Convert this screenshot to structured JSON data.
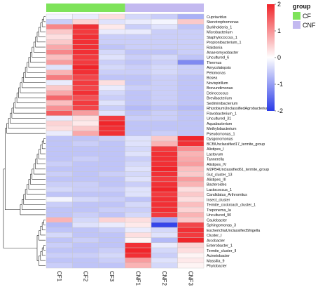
{
  "chart_data": {
    "type": "heatmap",
    "columns": [
      "CF1",
      "CF2",
      "CF3",
      "CNF1",
      "CNF2",
      "CNF3"
    ],
    "group_annotation": {
      "title": "group",
      "column_groups": [
        "CF",
        "CF",
        "CF",
        "CNF",
        "CNF",
        "CNF"
      ],
      "legend": [
        {
          "name": "CF",
          "color": "#7ee35a"
        },
        {
          "name": "CNF",
          "color": "#c3b9f0"
        }
      ]
    },
    "color_scale": {
      "min": -2,
      "max": 2,
      "ticks": [
        "2",
        "1",
        "0",
        "-1",
        "-2"
      ],
      "low_color": "#2a3be8",
      "mid_color": "#ffffff",
      "high_color": "#f0252a"
    },
    "rows": [
      {
        "label": "Cupriavidus",
        "values": [
          -0.1,
          -0.2,
          0.3,
          -0.4,
          -0.5,
          -0.8
        ]
      },
      {
        "label": "Stenotrophomonas",
        "values": [
          -0.5,
          0.4,
          -0.3,
          -0.2,
          -0.1,
          0.5
        ]
      },
      {
        "label": "Burkholderia_1",
        "values": [
          1.1,
          1.9,
          0.2,
          -0.5,
          -0.3,
          -0.6
        ]
      },
      {
        "label": "Microbacterium",
        "values": [
          0.5,
          1.8,
          -0.2,
          -0.2,
          -0.5,
          -0.5
        ]
      },
      {
        "label": "Staphylococcus_1",
        "values": [
          0.3,
          1.9,
          -0.5,
          -0.5,
          -0.5,
          -0.5
        ]
      },
      {
        "label": "Propionibacterium_1",
        "values": [
          0.5,
          1.9,
          -0.5,
          -0.5,
          -0.5,
          -0.5
        ]
      },
      {
        "label": "Ralstonia",
        "values": [
          0.8,
          1.9,
          -0.6,
          -0.5,
          -0.5,
          -0.5
        ]
      },
      {
        "label": "Anaeromyxobacter",
        "values": [
          1.1,
          1.9,
          -0.4,
          -0.6,
          -0.6,
          -0.5
        ]
      },
      {
        "label": "Uncultured_6",
        "values": [
          0.6,
          1.8,
          -0.3,
          -0.5,
          -0.4,
          -0.6
        ]
      },
      {
        "label": "Thermus",
        "values": [
          0.9,
          1.8,
          -0.5,
          -0.6,
          -0.5,
          -1.2
        ]
      },
      {
        "label": "Amycolatopsis",
        "values": [
          -0.3,
          2.0,
          -0.4,
          -0.5,
          -0.4,
          -0.5
        ]
      },
      {
        "label": "Pelomonas",
        "values": [
          0.7,
          1.9,
          -0.5,
          -0.5,
          -0.4,
          -0.5
        ]
      },
      {
        "label": "Bosea",
        "values": [
          1.2,
          1.7,
          -0.6,
          -0.6,
          -0.5,
          -0.6
        ]
      },
      {
        "label": "Novispirillum",
        "values": [
          -0.2,
          1.8,
          0.3,
          -0.6,
          -0.5,
          -0.6
        ]
      },
      {
        "label": "Brevundimonas",
        "values": [
          0.5,
          1.7,
          -0.2,
          -0.5,
          -0.5,
          -0.6
        ]
      },
      {
        "label": "Deinococcus",
        "values": [
          0.8,
          1.9,
          -0.4,
          -0.6,
          -0.5,
          -0.6
        ]
      },
      {
        "label": "Brevibacterium",
        "values": [
          1.4,
          1.6,
          -0.5,
          -0.6,
          -0.5,
          -0.6
        ]
      },
      {
        "label": "Sediminibacterium",
        "values": [
          0.6,
          1.8,
          -0.3,
          -0.6,
          -0.5,
          -0.6
        ]
      },
      {
        "label": "RhizobiumUnclassifiedAgrobacterium",
        "values": [
          1.0,
          1.7,
          -0.5,
          -0.7,
          -0.6,
          -0.7
        ]
      },
      {
        "label": "Flavobacterium_1",
        "values": [
          1.5,
          0.9,
          -0.3,
          -0.6,
          -0.5,
          -0.6
        ]
      },
      {
        "label": "Uncultured_31",
        "values": [
          -0.2,
          0.3,
          1.8,
          -0.5,
          -0.5,
          -0.6
        ]
      },
      {
        "label": "Aquabacterium",
        "values": [
          0.4,
          0.2,
          2.0,
          -0.6,
          -0.6,
          -0.6
        ]
      },
      {
        "label": "Methylobacterium",
        "values": [
          0.3,
          0.5,
          1.9,
          -0.6,
          -0.6,
          -0.6
        ]
      },
      {
        "label": "Pseudomonas_1",
        "values": [
          -0.2,
          0.8,
          1.9,
          -0.6,
          -0.5,
          -0.6
        ]
      },
      {
        "label": "Dysgonomonas",
        "values": [
          -0.6,
          -0.6,
          -0.5,
          -0.3,
          0.5,
          2.0
        ]
      },
      {
        "label": "BCf9Unclassified17_termite_group",
        "values": [
          -0.6,
          -0.5,
          -0.6,
          -0.3,
          0.7,
          1.9
        ]
      },
      {
        "label": "Alistipes_I",
        "values": [
          -0.6,
          -0.6,
          -0.6,
          -0.4,
          1.8,
          1.0
        ]
      },
      {
        "label": "Lactovum",
        "values": [
          -0.6,
          -0.6,
          -0.6,
          -0.3,
          1.9,
          0.7
        ]
      },
      {
        "label": "Tannerella",
        "values": [
          -0.6,
          -0.5,
          -0.6,
          -0.5,
          1.9,
          0.8
        ]
      },
      {
        "label": "Alistipes_IV",
        "values": [
          -0.5,
          -0.6,
          -0.6,
          -0.4,
          1.9,
          0.9
        ]
      },
      {
        "label": "M2PB4Unclassified61_termite_group",
        "values": [
          -0.6,
          -0.6,
          -0.6,
          -0.3,
          2.0,
          0.6
        ]
      },
      {
        "label": "Gut_cluster_13",
        "values": [
          -0.5,
          -0.6,
          -0.5,
          -0.4,
          1.9,
          0.5
        ]
      },
      {
        "label": "Alistipes_III",
        "values": [
          -0.6,
          -0.6,
          -0.6,
          -0.3,
          1.8,
          0.9
        ]
      },
      {
        "label": "Bacteroides",
        "values": [
          -0.5,
          -0.5,
          -0.6,
          -0.5,
          1.9,
          0.7
        ]
      },
      {
        "label": "Lactococcus_1",
        "values": [
          -0.4,
          -0.5,
          -0.5,
          -0.3,
          2.0,
          0.3
        ]
      },
      {
        "label": "Candidatus_Arthromitus",
        "values": [
          -0.6,
          -0.6,
          -0.6,
          -0.3,
          1.8,
          0.5
        ]
      },
      {
        "label": "Insect_cluster",
        "values": [
          -0.1,
          -0.4,
          -0.5,
          -0.6,
          1.9,
          0.3
        ]
      },
      {
        "label": "Termite_cockroach_cluster_1",
        "values": [
          -0.5,
          -0.6,
          -0.6,
          -0.4,
          1.9,
          0.6
        ]
      },
      {
        "label": "Treponema_Ia",
        "values": [
          -0.6,
          -0.6,
          -0.5,
          -0.5,
          1.9,
          0.4
        ]
      },
      {
        "label": "Uncultured_90",
        "values": [
          -0.6,
          -0.5,
          -0.6,
          -0.4,
          1.8,
          0.7
        ]
      },
      {
        "label": "Caulobacter",
        "values": [
          0.7,
          -0.4,
          0.4,
          0.3,
          -0.9,
          0.5
        ]
      },
      {
        "label": "Sphingomonas_3",
        "values": [
          -0.7,
          -0.3,
          -0.2,
          0.2,
          -1.9,
          1.7
        ]
      },
      {
        "label": "EscherichiaUnclassifiedShigella",
        "values": [
          -0.6,
          -0.6,
          -0.5,
          -0.2,
          -0.4,
          1.9
        ]
      },
      {
        "label": "Cluster_I",
        "values": [
          -0.4,
          -0.6,
          -0.6,
          0.3,
          -0.3,
          1.8
        ]
      },
      {
        "label": "Arcobacter",
        "values": [
          -0.6,
          -0.5,
          -0.6,
          0.1,
          -0.7,
          2.0
        ]
      },
      {
        "label": "Enterobacter_1",
        "values": [
          -0.5,
          -0.6,
          -0.6,
          1.9,
          -0.2,
          0.4
        ]
      },
      {
        "label": "Termite_cluster_II",
        "values": [
          -0.6,
          -0.6,
          -0.5,
          2.0,
          -0.4,
          0.3
        ]
      },
      {
        "label": "Acinetobacter",
        "values": [
          -0.5,
          -0.5,
          -0.4,
          1.9,
          -0.5,
          0.1
        ]
      },
      {
        "label": "Massilia_9",
        "values": [
          -0.6,
          -0.6,
          -0.5,
          0.9,
          -0.3,
          0.2
        ]
      },
      {
        "label": "Phytobacter",
        "values": [
          -0.5,
          -0.6,
          -0.6,
          0.7,
          -0.4,
          0.1
        ]
      }
    ]
  }
}
